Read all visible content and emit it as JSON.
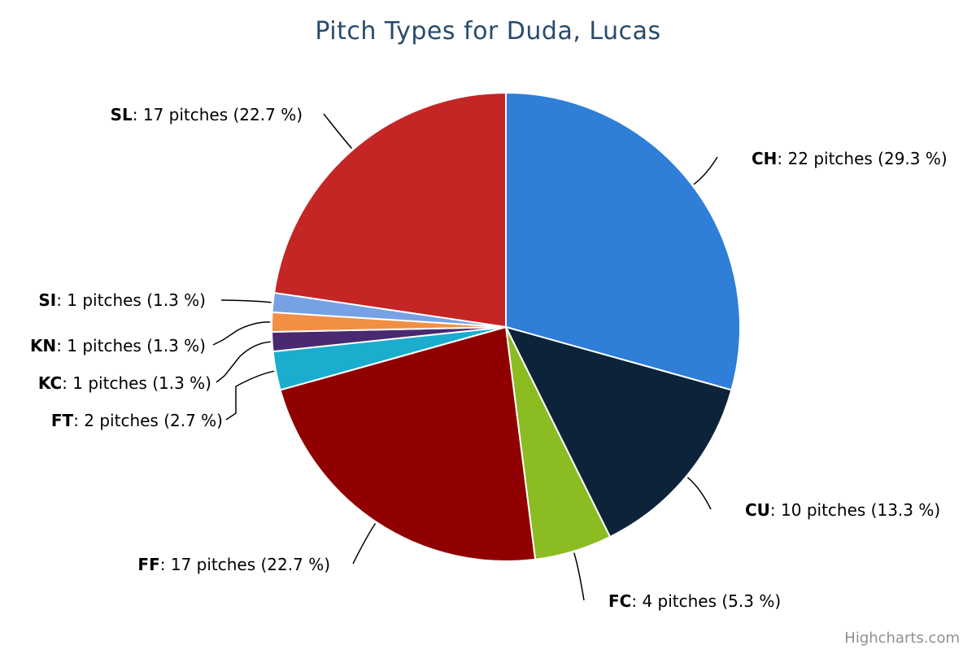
{
  "chart_data": {
    "type": "pie",
    "title": "Pitch Types for Duda, Lucas",
    "value_unit": "pitches",
    "start_angle_deg": 0,
    "direction": "clockwise",
    "slices": [
      {
        "name": "CH",
        "value": 22,
        "percent": "29.3",
        "color": "#2f7ed8"
      },
      {
        "name": "CU",
        "value": 10,
        "percent": "13.3",
        "color": "#0d233a"
      },
      {
        "name": "FC",
        "value": 4,
        "percent": "5.3",
        "color": "#8bbc21"
      },
      {
        "name": "FF",
        "value": 17,
        "percent": "22.7",
        "color": "#910000"
      },
      {
        "name": "FT",
        "value": 2,
        "percent": "2.7",
        "color": "#1aadce"
      },
      {
        "name": "KC",
        "value": 1,
        "percent": "1.3",
        "color": "#492970"
      },
      {
        "name": "KN",
        "value": 1,
        "percent": "1.3",
        "color": "#f28f43"
      },
      {
        "name": "SI",
        "value": 1,
        "percent": "1.3",
        "color": "#77a1e5"
      },
      {
        "name": "SL",
        "value": 17,
        "percent": "22.7",
        "color": "#c42525"
      }
    ]
  },
  "credits": "Highcharts.com"
}
